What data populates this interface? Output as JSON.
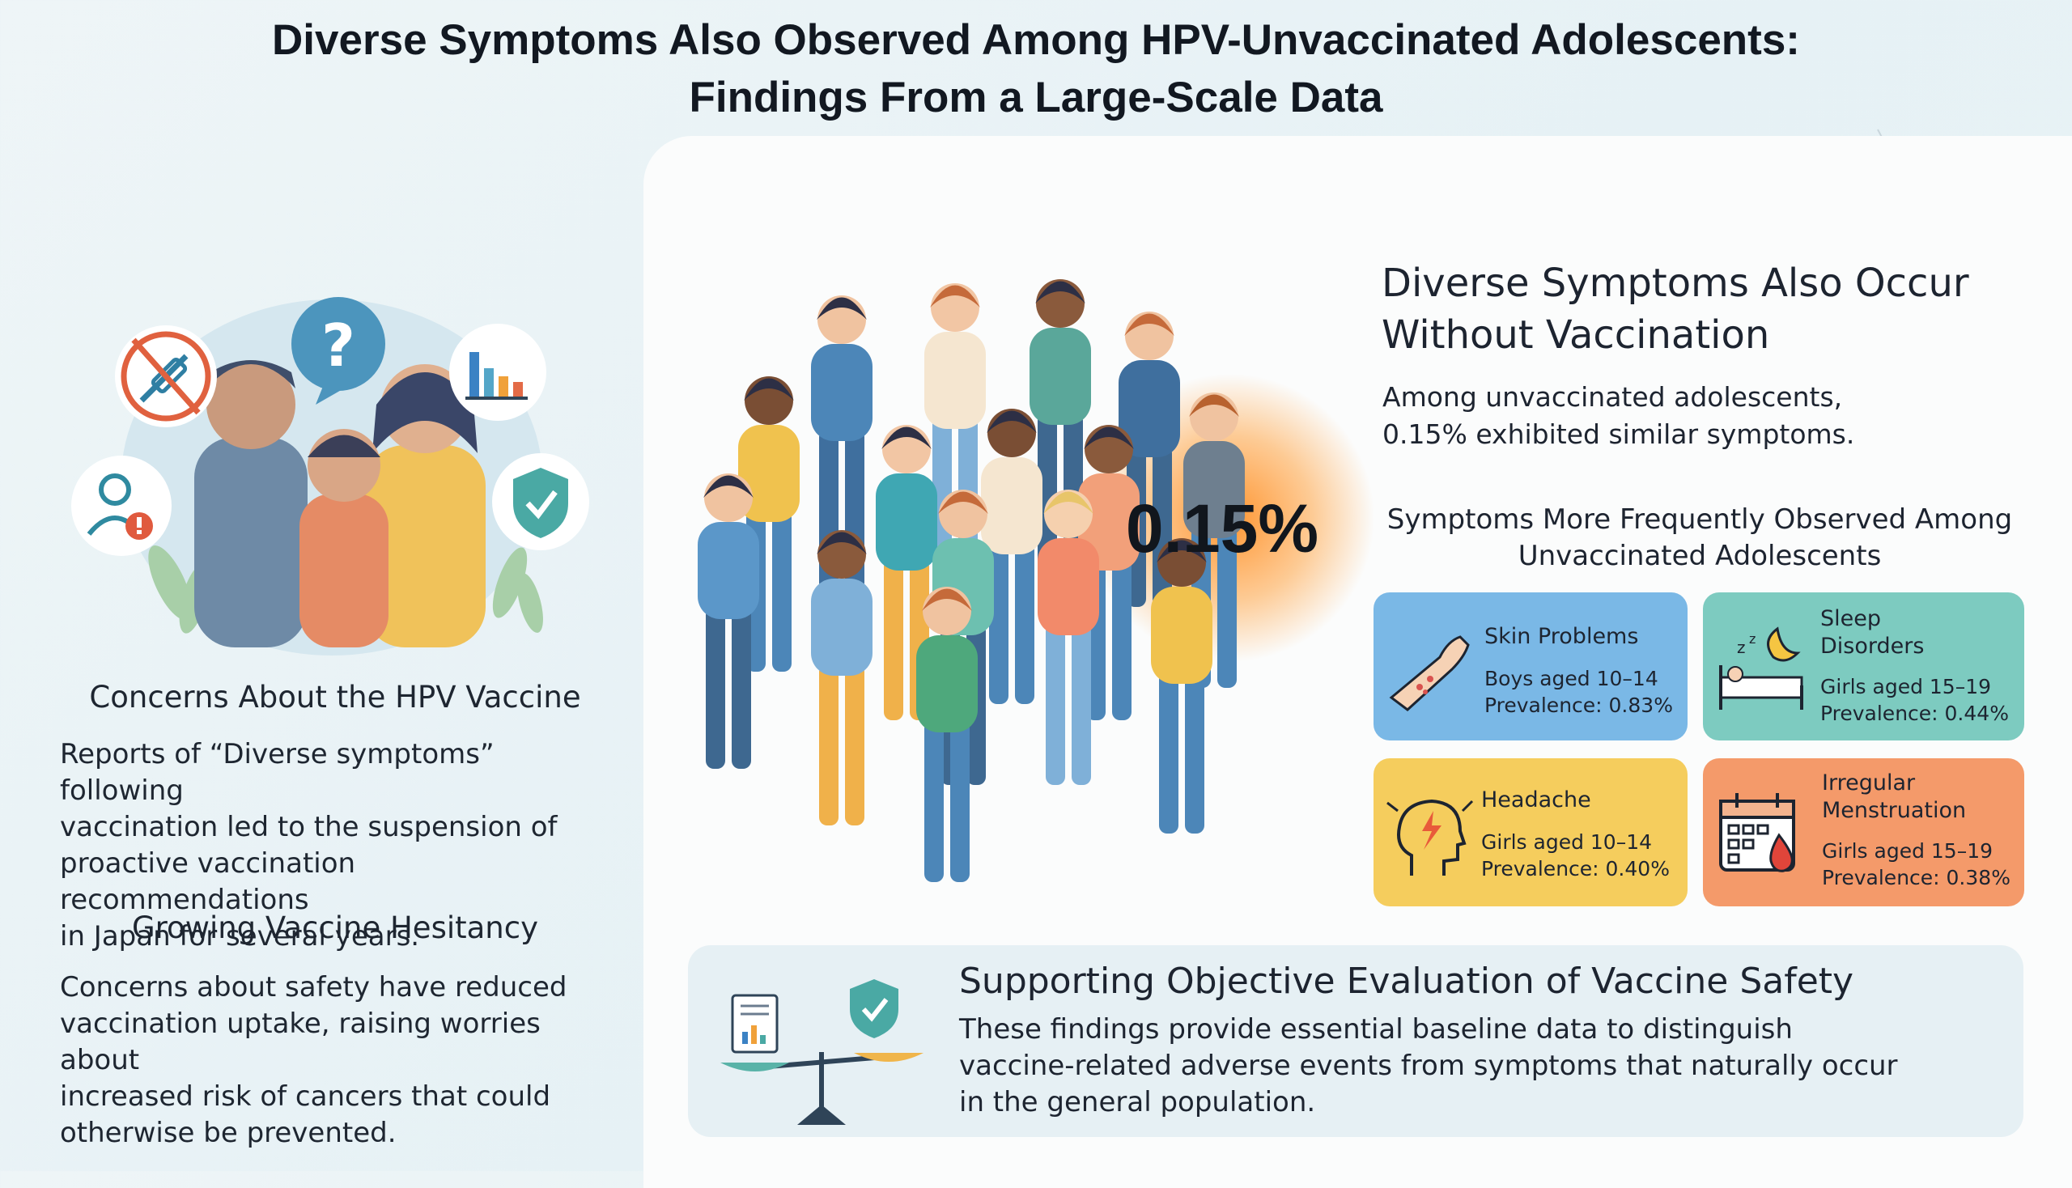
{
  "title": {
    "line1": "Diverse Symptoms Also Observed Among HPV-Unvaccinated Adolescents:",
    "line2": "Findings From a Large-Scale Data"
  },
  "left": {
    "concerns_heading": "Concerns About the HPV Vaccine",
    "concerns_lines": [
      "Reports of “Diverse symptoms” following",
      "vaccination led to the suspension of",
      "proactive vaccination recommendations",
      "in Japan for several years."
    ],
    "hesitancy_heading": "Growing Vaccine Hesitancy",
    "hesitancy_lines": [
      "Concerns about safety have reduced",
      "vaccination uptake, raising worries about",
      "increased risk of cancers that could",
      "otherwise be prevented."
    ],
    "icons": [
      "no-syringe-icon",
      "question-icon",
      "bar-chart-icon",
      "user-alert-icon",
      "shield-check-icon"
    ]
  },
  "main": {
    "percentage": "0.15%",
    "heading_lines": [
      "Diverse Symptoms Also Occur",
      "Without Vaccination"
    ],
    "intro_lines": [
      "Among unvaccinated adolescents,",
      "0.15% exhibited similar symptoms."
    ],
    "symptoms_heading_lines": [
      "Symptoms More Frequently Observed Among",
      "Unvaccinated Adolescents"
    ],
    "symptoms": [
      {
        "name_lines": [
          "Skin Problems"
        ],
        "group": "Boys aged 10–14",
        "prevalence": "Prevalence: 0.83%",
        "icon": "skin-arm-icon",
        "color": "#7ab8e6"
      },
      {
        "name_lines": [
          "Sleep",
          "Disorders"
        ],
        "group": "Girls aged 15–19",
        "prevalence": "Prevalence: 0.44%",
        "icon": "sleep-bed-icon",
        "color": "#7dcbc0"
      },
      {
        "name_lines": [
          "Headache"
        ],
        "group": "Girls aged 10–14",
        "prevalence": "Prevalence: 0.40%",
        "icon": "headache-icon",
        "color": "#f5cd5d"
      },
      {
        "name_lines": [
          "Irregular",
          "Menstruation"
        ],
        "group": "Girls aged 15–19",
        "prevalence": "Prevalence: 0.38%",
        "icon": "calendar-drop-icon",
        "color": "#f49a6a"
      }
    ]
  },
  "banner": {
    "heading": "Supporting Objective Evaluation of Vaccine Safety",
    "lines": [
      "These findings provide essential baseline data to distinguish",
      "vaccine-related adverse events from symptoms that naturally occur",
      "in the general population."
    ],
    "icons": [
      "document-chart-icon",
      "shield-check-icon",
      "balance-scale-icon"
    ]
  }
}
